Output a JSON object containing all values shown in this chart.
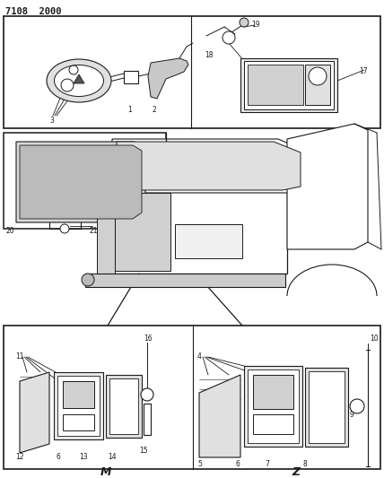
{
  "title": "7108  2000",
  "bg_color": "#ffffff",
  "line_color": "#1a1a1a",
  "fig_width": 4.28,
  "fig_height": 5.33,
  "dpi": 100
}
